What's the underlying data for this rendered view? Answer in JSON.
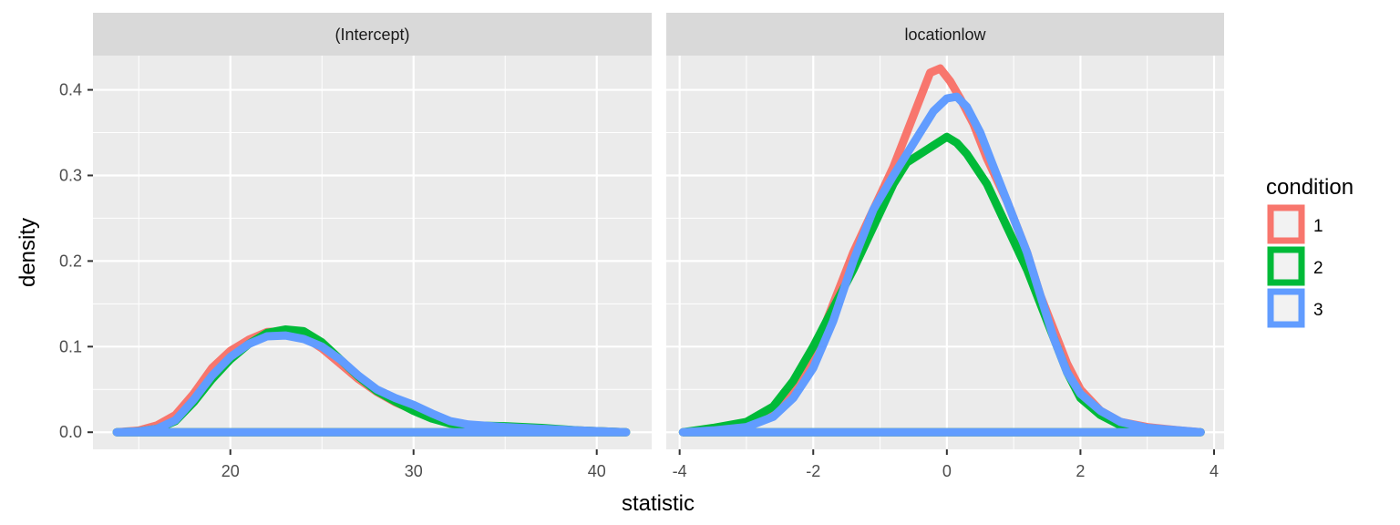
{
  "chart_data": {
    "type": "line",
    "subtype": "density, faceted",
    "xlabel": "statistic",
    "ylabel": "density",
    "grid": true,
    "legend": {
      "title": "condition",
      "placement": "right",
      "entries": [
        {
          "label": "1",
          "color": "#F8766D"
        },
        {
          "label": "2",
          "color": "#00BA38"
        },
        {
          "label": "3",
          "color": "#619CFF"
        }
      ]
    },
    "y_axis": {
      "ylim": [
        -0.02,
        0.44
      ],
      "ticks": [
        0.0,
        0.1,
        0.2,
        0.3,
        0.4
      ],
      "tick_labels": [
        "0.0",
        "0.1",
        "0.2",
        "0.3",
        "0.4"
      ]
    },
    "panels": [
      {
        "strip": "(Intercept)",
        "xlim": [
          12.5,
          43.0
        ],
        "x_ticks": [
          20,
          30,
          40
        ],
        "x_tick_labels": [
          "20",
          "30",
          "40"
        ],
        "series": [
          {
            "name": "1",
            "color": "#F8766D",
            "points": [
              [
                13.8,
                0
              ],
              [
                15,
                0.002
              ],
              [
                16,
                0.008
              ],
              [
                17,
                0.02
              ],
              [
                18,
                0.045
              ],
              [
                19,
                0.075
              ],
              [
                20,
                0.095
              ],
              [
                21,
                0.108
              ],
              [
                22,
                0.117
              ],
              [
                23,
                0.118
              ],
              [
                24,
                0.112
              ],
              [
                25,
                0.098
              ],
              [
                26,
                0.08
              ],
              [
                27,
                0.062
              ],
              [
                28,
                0.047
              ],
              [
                29,
                0.035
              ],
              [
                30,
                0.026
              ],
              [
                31,
                0.018
              ],
              [
                32,
                0.012
              ],
              [
                33,
                0.008
              ],
              [
                35,
                0.006
              ],
              [
                37,
                0.004
              ],
              [
                39,
                0.002
              ],
              [
                41.6,
                0
              ]
            ]
          },
          {
            "name": "2",
            "color": "#00BA38",
            "points": [
              [
                13.8,
                0
              ],
              [
                15,
                0.001
              ],
              [
                16,
                0.004
              ],
              [
                17,
                0.013
              ],
              [
                18,
                0.035
              ],
              [
                19,
                0.062
              ],
              [
                20,
                0.085
              ],
              [
                21,
                0.103
              ],
              [
                22,
                0.116
              ],
              [
                23,
                0.12
              ],
              [
                24,
                0.118
              ],
              [
                25,
                0.105
              ],
              [
                26,
                0.085
              ],
              [
                27,
                0.065
              ],
              [
                28,
                0.048
              ],
              [
                29,
                0.036
              ],
              [
                30,
                0.025
              ],
              [
                31,
                0.016
              ],
              [
                32,
                0.01
              ],
              [
                33,
                0.008
              ],
              [
                35,
                0.007
              ],
              [
                37,
                0.005
              ],
              [
                39,
                0.002
              ],
              [
                41.6,
                0
              ]
            ]
          },
          {
            "name": "3",
            "color": "#619CFF",
            "points": [
              [
                13.8,
                0
              ],
              [
                15,
                0.001
              ],
              [
                16,
                0.004
              ],
              [
                17,
                0.014
              ],
              [
                18,
                0.038
              ],
              [
                19,
                0.066
              ],
              [
                20,
                0.088
              ],
              [
                21,
                0.103
              ],
              [
                22,
                0.112
              ],
              [
                23,
                0.113
              ],
              [
                24,
                0.109
              ],
              [
                25,
                0.1
              ],
              [
                26,
                0.085
              ],
              [
                27,
                0.066
              ],
              [
                28,
                0.05
              ],
              [
                29,
                0.04
              ],
              [
                30,
                0.032
              ],
              [
                31,
                0.022
              ],
              [
                32,
                0.013
              ],
              [
                33,
                0.009
              ],
              [
                35,
                0.006
              ],
              [
                37,
                0.004
              ],
              [
                39,
                0.002
              ],
              [
                41.6,
                0
              ]
            ]
          }
        ]
      },
      {
        "strip": "locationlow",
        "xlim": [
          -4.2,
          4.15
        ],
        "x_ticks": [
          -4,
          -2,
          0,
          2,
          4
        ],
        "x_tick_labels": [
          "-4",
          "-2",
          "0",
          "2",
          "4"
        ],
        "series": [
          {
            "name": "1",
            "color": "#F8766D",
            "points": [
              [
                -3.95,
                0
              ],
              [
                -3.5,
                0.002
              ],
              [
                -3,
                0.008
              ],
              [
                -2.6,
                0.02
              ],
              [
                -2.3,
                0.045
              ],
              [
                -2,
                0.09
              ],
              [
                -1.7,
                0.15
              ],
              [
                -1.4,
                0.21
              ],
              [
                -1.1,
                0.26
              ],
              [
                -0.8,
                0.31
              ],
              [
                -0.6,
                0.35
              ],
              [
                -0.4,
                0.39
              ],
              [
                -0.25,
                0.42
              ],
              [
                -0.1,
                0.425
              ],
              [
                0.05,
                0.41
              ],
              [
                0.2,
                0.39
              ],
              [
                0.4,
                0.36
              ],
              [
                0.6,
                0.32
              ],
              [
                0.9,
                0.27
              ],
              [
                1.2,
                0.21
              ],
              [
                1.4,
                0.16
              ],
              [
                1.6,
                0.12
              ],
              [
                1.8,
                0.08
              ],
              [
                2,
                0.05
              ],
              [
                2.3,
                0.025
              ],
              [
                2.6,
                0.012
              ],
              [
                3,
                0.006
              ],
              [
                3.5,
                0.002
              ],
              [
                3.8,
                0
              ]
            ]
          },
          {
            "name": "2",
            "color": "#00BA38",
            "points": [
              [
                -3.95,
                0
              ],
              [
                -3.5,
                0.005
              ],
              [
                -3,
                0.012
              ],
              [
                -2.6,
                0.03
              ],
              [
                -2.3,
                0.06
              ],
              [
                -2,
                0.1
              ],
              [
                -1.7,
                0.145
              ],
              [
                -1.4,
                0.19
              ],
              [
                -1.1,
                0.24
              ],
              [
                -0.8,
                0.29
              ],
              [
                -0.6,
                0.315
              ],
              [
                -0.4,
                0.325
              ],
              [
                -0.2,
                0.335
              ],
              [
                0,
                0.345
              ],
              [
                0.15,
                0.338
              ],
              [
                0.3,
                0.325
              ],
              [
                0.6,
                0.29
              ],
              [
                0.9,
                0.24
              ],
              [
                1.2,
                0.19
              ],
              [
                1.4,
                0.15
              ],
              [
                1.6,
                0.11
              ],
              [
                1.8,
                0.07
              ],
              [
                2,
                0.04
              ],
              [
                2.3,
                0.02
              ],
              [
                2.6,
                0.008
              ],
              [
                3,
                0.003
              ],
              [
                3.5,
                0.001
              ],
              [
                3.8,
                0
              ]
            ]
          },
          {
            "name": "3",
            "color": "#619CFF",
            "points": [
              [
                -3.95,
                0
              ],
              [
                -3.5,
                0.002
              ],
              [
                -3,
                0.006
              ],
              [
                -2.6,
                0.018
              ],
              [
                -2.3,
                0.04
              ],
              [
                -2,
                0.075
              ],
              [
                -1.7,
                0.13
              ],
              [
                -1.4,
                0.2
              ],
              [
                -1.1,
                0.26
              ],
              [
                -0.8,
                0.3
              ],
              [
                -0.6,
                0.325
              ],
              [
                -0.4,
                0.35
              ],
              [
                -0.2,
                0.375
              ],
              [
                0,
                0.39
              ],
              [
                0.15,
                0.392
              ],
              [
                0.3,
                0.38
              ],
              [
                0.5,
                0.35
              ],
              [
                0.7,
                0.31
              ],
              [
                0.9,
                0.27
              ],
              [
                1.2,
                0.21
              ],
              [
                1.4,
                0.16
              ],
              [
                1.6,
                0.11
              ],
              [
                1.8,
                0.07
              ],
              [
                2,
                0.045
              ],
              [
                2.3,
                0.025
              ],
              [
                2.6,
                0.012
              ],
              [
                3,
                0.005
              ],
              [
                3.5,
                0.002
              ],
              [
                3.8,
                0
              ]
            ]
          }
        ]
      }
    ]
  }
}
